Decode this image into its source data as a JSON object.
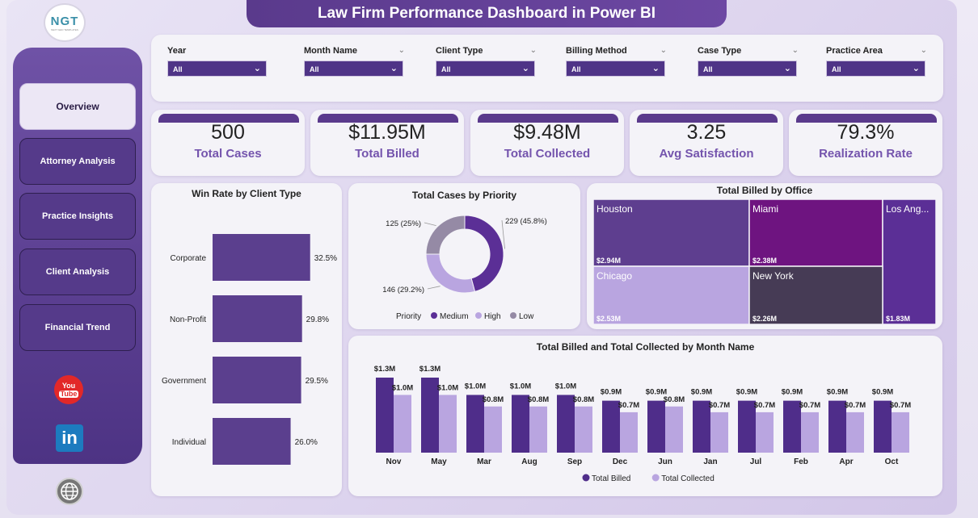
{
  "title": "Law Firm Performance Dashboard in Power BI",
  "logo": {
    "mark": "NGT",
    "sub": "NEXT GEN TEMPLATES"
  },
  "nav": [
    {
      "label": "Overview",
      "active": true
    },
    {
      "label": "Attorney Analysis",
      "active": false
    },
    {
      "label": "Practice Insights",
      "active": false
    },
    {
      "label": "Client Analysis",
      "active": false
    },
    {
      "label": "Financial Trend",
      "active": false
    }
  ],
  "social": {
    "youtube_top": "You",
    "youtube_bottom": "Tube",
    "linkedin": "in"
  },
  "icons": [
    "youtube-icon",
    "linkedin-icon",
    "globe-icon",
    "chevron-down-icon"
  ],
  "filters": [
    {
      "label": "Year",
      "value": "All"
    },
    {
      "label": "Month Name",
      "value": "All"
    },
    {
      "label": "Client Type",
      "value": "All"
    },
    {
      "label": "Billing Method",
      "value": "All"
    },
    {
      "label": "Case Type",
      "value": "All"
    },
    {
      "label": "Practice Area",
      "value": "All"
    }
  ],
  "kpis": [
    {
      "value": "500",
      "label": "Total Cases"
    },
    {
      "value": "$11.95M",
      "label": "Total Billed"
    },
    {
      "value": "$9.48M",
      "label": "Total Collected"
    },
    {
      "value": "3.25",
      "label": "Avg Satisfaction"
    },
    {
      "value": "79.3%",
      "label": "Realization Rate"
    }
  ],
  "colors": {
    "primary": "#5a3a8c",
    "bar": "#5b3f8e",
    "medium": "#5b2f96",
    "high": "#b9a5e0",
    "low": "#958aa5",
    "billed": "#4f2d8a",
    "collected": "#b9a5e0",
    "kpi_label": "#7454ad"
  },
  "chart_data": [
    {
      "type": "bar",
      "orientation": "horizontal",
      "title": "Win Rate by Client Type",
      "categories": [
        "Corporate",
        "Non-Profit",
        "Government",
        "Individual"
      ],
      "values": [
        32.5,
        29.8,
        29.5,
        26.0
      ],
      "labels": [
        "32.5%",
        "29.8%",
        "29.5%",
        "26.0%"
      ],
      "xlim": [
        0,
        35
      ]
    },
    {
      "type": "pie",
      "variant": "donut",
      "title": "Total Cases by Priority",
      "legend_title": "Priority",
      "categories": [
        "Medium",
        "High",
        "Low"
      ],
      "values": [
        229,
        146,
        125
      ],
      "labels": [
        "229 (45.8%)",
        "146 (29.2%)",
        "125 (25%)"
      ],
      "legend_placement": "bottom"
    },
    {
      "type": "treemap",
      "title": "Total Billed by Office",
      "categories": [
        "Houston",
        "Miami",
        "Los Ang...",
        "Chicago",
        "New York"
      ],
      "values": [
        2.94,
        2.38,
        1.83,
        2.53,
        2.26
      ],
      "labels": [
        "$2.94M",
        "$2.38M",
        "$1.83M",
        "$2.53M",
        "$2.26M"
      ],
      "colors": [
        "#5e3e8f",
        "#6e1480",
        "#5b2f96",
        "#b9a5e0",
        "#463b55"
      ]
    },
    {
      "type": "bar",
      "title": "Total Billed and Total Collected by Month Name",
      "categories": [
        "Nov",
        "May",
        "Mar",
        "Aug",
        "Sep",
        "Dec",
        "Jun",
        "Jan",
        "Jul",
        "Feb",
        "Apr",
        "Oct"
      ],
      "series": [
        {
          "name": "Total Billed",
          "values": [
            1.3,
            1.3,
            1.0,
            1.0,
            1.0,
            0.9,
            0.9,
            0.9,
            0.9,
            0.9,
            0.9,
            0.9
          ],
          "labels": [
            "$1.3M",
            "$1.3M",
            "$1.0M",
            "$1.0M",
            "$1.0M",
            "$0.9M",
            "$0.9M",
            "$0.9M",
            "$0.9M",
            "$0.9M",
            "$0.9M",
            "$0.9M"
          ]
        },
        {
          "name": "Total Collected",
          "values": [
            1.0,
            1.0,
            0.8,
            0.8,
            0.8,
            0.7,
            0.8,
            0.7,
            0.7,
            0.7,
            0.7,
            0.7
          ],
          "labels": [
            "$1.0M",
            "$1.0M",
            "$0.8M",
            "$0.8M",
            "$0.8M",
            "$0.7M",
            "$0.8M",
            "$0.7M",
            "$0.7M",
            "$0.7M",
            "$0.7M",
            "$0.7M"
          ]
        }
      ],
      "ylim": [
        0,
        1.3
      ],
      "legend_placement": "bottom"
    }
  ]
}
